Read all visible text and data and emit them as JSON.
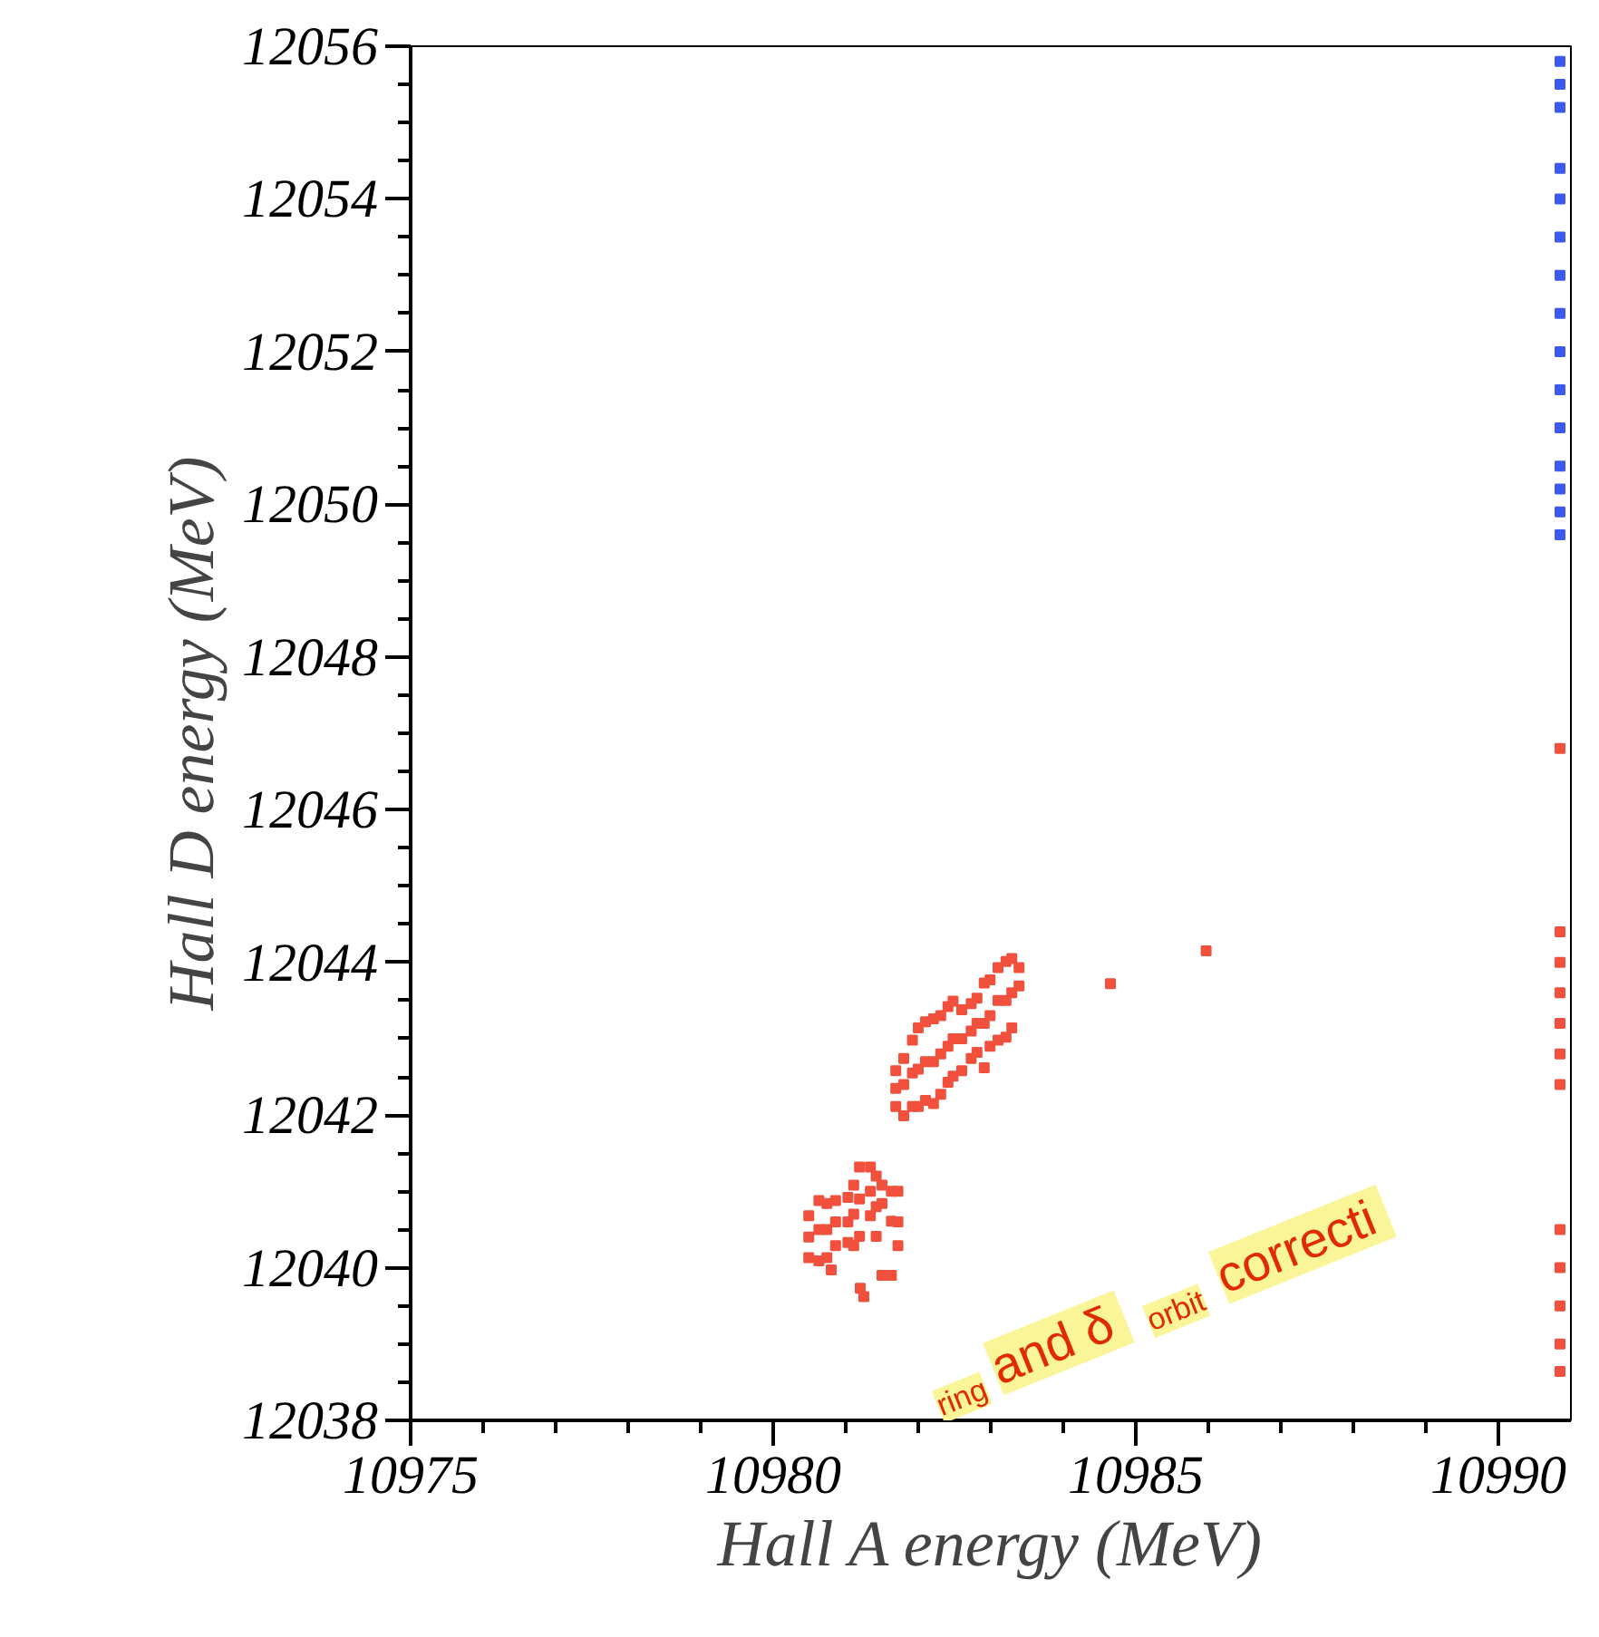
{
  "chart_data": {
    "type": "scatter",
    "xlabel": "Hall A energy (MeV)",
    "ylabel": "Hall D energy (MeV)",
    "marker": "square",
    "xlim": [
      10975,
      10991
    ],
    "xticks": [
      10975,
      {
        "value": 10976,
        "label": null
      },
      {
        "value": 10977,
        "label": null
      },
      {
        "value": 10978,
        "label": null
      },
      {
        "value": 10979,
        "label": null
      },
      10980,
      {
        "value": 10981,
        "label": null
      },
      {
        "value": 10982,
        "label": null
      },
      {
        "value": 10983,
        "label": null
      },
      {
        "value": 10984,
        "label": null
      },
      10985,
      {
        "value": 10986,
        "label": null
      },
      {
        "value": 10987,
        "label": null
      },
      {
        "value": 10988,
        "label": null
      },
      {
        "value": 10989,
        "label": null
      },
      10990
    ],
    "ylim": [
      12038,
      12056
    ],
    "yticks": [
      12038,
      {
        "value": 12038.5,
        "label": null
      },
      {
        "value": 12039,
        "label": null
      },
      {
        "value": 12039.5,
        "label": null
      },
      12040,
      {
        "value": 12040.5,
        "label": null
      },
      {
        "value": 12041,
        "label": null
      },
      {
        "value": 12041.5,
        "label": null
      },
      12042,
      {
        "value": 12042.5,
        "label": null
      },
      {
        "value": 12043,
        "label": null
      },
      {
        "value": 12043.5,
        "label": null
      },
      12044,
      {
        "value": 12044.5,
        "label": null
      },
      {
        "value": 12045,
        "label": null
      },
      {
        "value": 12045.5,
        "label": null
      },
      12046,
      {
        "value": 12046.5,
        "label": null
      },
      {
        "value": 12047,
        "label": null
      },
      {
        "value": 12047.5,
        "label": null
      },
      12048,
      {
        "value": 12048.5,
        "label": null
      },
      {
        "value": 12049,
        "label": null
      },
      {
        "value": 12049.5,
        "label": null
      },
      12050,
      {
        "value": 12050.5,
        "label": null
      },
      {
        "value": 12051,
        "label": null
      },
      {
        "value": 12051.5,
        "label": null
      },
      12052,
      {
        "value": 12052.5,
        "label": null
      },
      {
        "value": 12053,
        "label": null
      },
      {
        "value": 12053.5,
        "label": null
      },
      12054,
      {
        "value": 12054.5,
        "label": null
      },
      {
        "value": 12055,
        "label": null
      },
      {
        "value": 12055.5,
        "label": null
      },
      12056
    ],
    "annotations": [
      "$_{ring}$ and δ$_{orbit}$ correcti"
    ],
    "series": [
      {
        "color": "#f0503c",
        "x": [
          10980.49,
          10980.49,
          10980.49,
          10980.63,
          10980.63,
          10980.63,
          10980.74,
          10980.74,
          10980.74,
          10980.86,
          10980.86,
          10980.86,
          10981.03,
          10981.03,
          10981.03,
          10981.11,
          10981.11,
          10981.11,
          10981.19,
          10981.19,
          10981.19,
          10981.34,
          10981.34,
          10981.34,
          10981.42,
          10981.42,
          10981.42,
          10981.5,
          10981.5,
          10981.63,
          10981.63,
          10981.72,
          10981.72,
          10981.72,
          10980.8,
          10981.2,
          10981.25,
          10981.5,
          10981.63,
          10981.69,
          10981.69,
          10981.69,
          10981.8,
          10981.8,
          10981.8,
          10981.92,
          10981.92,
          10981.92,
          10982.0,
          10982.0,
          10982.0,
          10982.1,
          10982.1,
          10982.1,
          10982.21,
          10982.21,
          10982.21,
          10982.31,
          10982.31,
          10982.31,
          10982.41,
          10982.41,
          10982.41,
          10982.48,
          10982.48,
          10982.48,
          10982.6,
          10982.6,
          10982.6,
          10982.73,
          10982.73,
          10982.73,
          10982.81,
          10982.81,
          10982.81,
          10982.91,
          10982.91,
          10982.91,
          10982.99,
          10982.99,
          10982.99,
          10983.1,
          10983.1,
          10983.1,
          10983.21,
          10983.21,
          10983.21,
          10983.29,
          10983.29,
          10983.29,
          10983.39,
          10983.39,
          10984.65,
          10985.97,
          10990.85,
          10990.85,
          10990.85,
          10990.85,
          10990.85,
          10990.85,
          10990.85,
          10990.85,
          10990.85,
          10990.85,
          10990.85,
          10990.85
        ],
        "values": [
          12040.68,
          12040.4,
          12040.13,
          12040.88,
          12040.5,
          12040.09,
          12040.84,
          12040.5,
          12040.13,
          12040.88,
          12040.6,
          12040.29,
          12040.92,
          12040.6,
          12040.33,
          12041.08,
          12040.7,
          12040.29,
          12041.32,
          12040.9,
          12040.41,
          12041.32,
          12041.0,
          12040.68,
          12041.2,
          12040.8,
          12040.41,
          12041.08,
          12040.84,
          12041.0,
          12040.61,
          12041.0,
          12040.6,
          12040.29,
          12039.97,
          12039.73,
          12039.62,
          12039.9,
          12039.9,
          12042.58,
          12042.35,
          12042.11,
          12042.74,
          12042.4,
          12041.99,
          12042.98,
          12042.55,
          12042.11,
          12043.14,
          12042.6,
          12042.11,
          12043.22,
          12042.7,
          12042.19,
          12043.26,
          12042.7,
          12042.15,
          12043.3,
          12042.8,
          12042.27,
          12043.42,
          12042.9,
          12042.43,
          12043.49,
          12043.0,
          12042.51,
          12043.38,
          12043.0,
          12042.58,
          12043.46,
          12043.1,
          12042.74,
          12043.53,
          12043.2,
          12042.82,
          12043.73,
          12043.2,
          12042.62,
          12043.77,
          12043.3,
          12042.9,
          12043.93,
          12043.5,
          12042.98,
          12044.01,
          12043.5,
          12043.02,
          12044.05,
          12043.6,
          12043.14,
          12043.93,
          12043.69,
          12043.72,
          12044.15,
          12046.8,
          12044.4,
          12044.0,
          12043.6,
          12043.2,
          12042.8,
          12042.4,
          12040.5,
          12040.0,
          12039.5,
          12039.0,
          12038.64
        ]
      },
      {
        "color": "#3c5af0",
        "x": [
          10990.85,
          10990.85,
          10990.85,
          10990.85,
          10990.85,
          10990.85,
          10990.85,
          10990.85,
          10990.85,
          10990.85,
          10990.85,
          10990.85,
          10990.85,
          10990.85,
          10990.85
        ],
        "values": [
          12055.8,
          12055.5,
          12055.2,
          12054.4,
          12054.0,
          12053.5,
          12053.0,
          12052.5,
          12052.0,
          12051.5,
          12051.0,
          12050.5,
          12050.2,
          12049.9,
          12049.6
        ]
      }
    ]
  }
}
